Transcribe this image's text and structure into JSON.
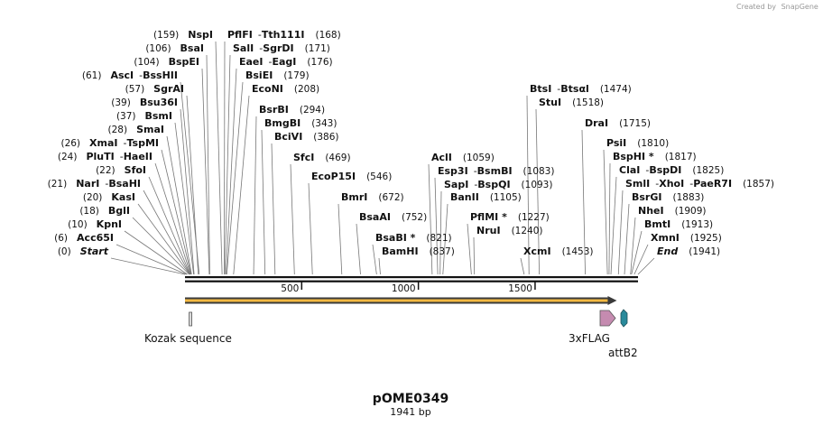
{
  "map": {
    "name": "pOME0349",
    "length_label": "1941 bp",
    "length": 1941,
    "credit_prefix": "Created by",
    "credit_brand": "SnapGene",
    "ticks": [
      500,
      1000,
      1500
    ]
  },
  "colors": {
    "backbone": "#111111",
    "orf_fill": "#f4b942",
    "kozak": "#d9d9d9",
    "flag": "#c58bb0",
    "attb2": "#2a8a9b"
  },
  "sites": [
    {
      "pos": 0,
      "label": "(0)",
      "names": [
        "Start"
      ],
      "italic": true
    },
    {
      "pos": 6,
      "label": "(6)",
      "names": [
        "Acc65I"
      ]
    },
    {
      "pos": 10,
      "label": "(10)",
      "names": [
        "KpnI"
      ]
    },
    {
      "pos": 18,
      "label": "(18)",
      "names": [
        "BglI"
      ]
    },
    {
      "pos": 20,
      "label": "(20)",
      "names": [
        "KasI"
      ]
    },
    {
      "pos": 21,
      "label": "(21)",
      "names": [
        "NarI",
        "BsaHI"
      ]
    },
    {
      "pos": 22,
      "label": "(22)",
      "names": [
        "SfoI"
      ]
    },
    {
      "pos": 24,
      "label": "(24)",
      "names": [
        "PluTI",
        "HaeII"
      ]
    },
    {
      "pos": 26,
      "label": "(26)",
      "names": [
        "XmaI",
        "TspMI"
      ]
    },
    {
      "pos": 28,
      "label": "(28)",
      "names": [
        "SmaI"
      ]
    },
    {
      "pos": 37,
      "label": "(37)",
      "names": [
        "BsmI"
      ]
    },
    {
      "pos": 39,
      "label": "(39)",
      "names": [
        "Bsu36I"
      ]
    },
    {
      "pos": 57,
      "label": "(57)",
      "names": [
        "SgrAI"
      ]
    },
    {
      "pos": 61,
      "label": "(61)",
      "names": [
        "AscI",
        "BssHII"
      ]
    },
    {
      "pos": 104,
      "label": "(104)",
      "names": [
        "BspEI"
      ]
    },
    {
      "pos": 106,
      "label": "(106)",
      "names": [
        "BsaI"
      ]
    },
    {
      "pos": 159,
      "label": "(159)",
      "names": [
        "NspI"
      ]
    },
    {
      "pos": 168,
      "label": "(168)",
      "names": [
        "PflFI",
        "Tth111I"
      ]
    },
    {
      "pos": 171,
      "label": "(171)",
      "names": [
        "SalI",
        "SgrDI"
      ]
    },
    {
      "pos": 176,
      "label": "(176)",
      "names": [
        "EaeI",
        "EagI"
      ]
    },
    {
      "pos": 179,
      "label": "(179)",
      "names": [
        "BsiEI"
      ]
    },
    {
      "pos": 208,
      "label": "(208)",
      "names": [
        "EcoNI"
      ]
    },
    {
      "pos": 294,
      "label": "(294)",
      "names": [
        "BsrBI"
      ]
    },
    {
      "pos": 343,
      "label": "(343)",
      "names": [
        "BmgBI"
      ]
    },
    {
      "pos": 386,
      "label": "(386)",
      "names": [
        "BciVI"
      ]
    },
    {
      "pos": 469,
      "label": "(469)",
      "names": [
        "SfcI"
      ]
    },
    {
      "pos": 546,
      "label": "(546)",
      "names": [
        "EcoP15I"
      ]
    },
    {
      "pos": 672,
      "label": "(672)",
      "names": [
        "BmrI"
      ]
    },
    {
      "pos": 752,
      "label": "(752)",
      "names": [
        "BsaAI"
      ]
    },
    {
      "pos": 821,
      "label": "(821)",
      "names": [
        "BsaBI *"
      ]
    },
    {
      "pos": 837,
      "label": "(837)",
      "names": [
        "BamHI"
      ]
    },
    {
      "pos": 1059,
      "label": "(1059)",
      "names": [
        "AclI"
      ]
    },
    {
      "pos": 1083,
      "label": "(1083)",
      "names": [
        "Esp3I",
        "BsmBI"
      ]
    },
    {
      "pos": 1093,
      "label": "(1093)",
      "names": [
        "SapI",
        "BspQI"
      ]
    },
    {
      "pos": 1105,
      "label": "(1105)",
      "names": [
        "BanII"
      ]
    },
    {
      "pos": 1227,
      "label": "(1227)",
      "names": [
        "PflMI *"
      ]
    },
    {
      "pos": 1240,
      "label": "(1240)",
      "names": [
        "NruI"
      ]
    },
    {
      "pos": 1453,
      "label": "(1453)",
      "names": [
        "XcmI"
      ]
    },
    {
      "pos": 1474,
      "label": "(1474)",
      "names": [
        "BtsI",
        "Btsαl"
      ]
    },
    {
      "pos": 1518,
      "label": "(1518)",
      "names": [
        "StuI"
      ]
    },
    {
      "pos": 1715,
      "label": "(1715)",
      "names": [
        "DraI"
      ]
    },
    {
      "pos": 1810,
      "label": "(1810)",
      "names": [
        "PsiI"
      ]
    },
    {
      "pos": 1817,
      "label": "(1817)",
      "names": [
        "BspHI *"
      ]
    },
    {
      "pos": 1825,
      "label": "(1825)",
      "names": [
        "ClaI",
        "BspDI"
      ]
    },
    {
      "pos": 1857,
      "label": "(1857)",
      "names": [
        "SmlI",
        "XhoI",
        "PaeR7I"
      ]
    },
    {
      "pos": 1883,
      "label": "(1883)",
      "names": [
        "BsrGI"
      ]
    },
    {
      "pos": 1909,
      "label": "(1909)",
      "names": [
        "NheI"
      ]
    },
    {
      "pos": 1913,
      "label": "(1913)",
      "names": [
        "BmtI"
      ]
    },
    {
      "pos": 1925,
      "label": "(1925)",
      "names": [
        "XmnI"
      ]
    },
    {
      "pos": 1941,
      "label": "(1941)",
      "names": [
        "End"
      ],
      "italic": true
    }
  ],
  "features": [
    {
      "key": "orf",
      "label": "",
      "start": 0,
      "end": 1850,
      "kind": "orf"
    },
    {
      "key": "kozak",
      "label": "Kozak sequence",
      "start": 10,
      "end": 18,
      "kind": "box"
    },
    {
      "key": "flag",
      "label": "3xFLAG",
      "start": 1794,
      "end": 1860,
      "kind": "arrow"
    },
    {
      "key": "attb2",
      "label": "attB2",
      "start": 1883,
      "end": 1911,
      "kind": "hex"
    }
  ]
}
